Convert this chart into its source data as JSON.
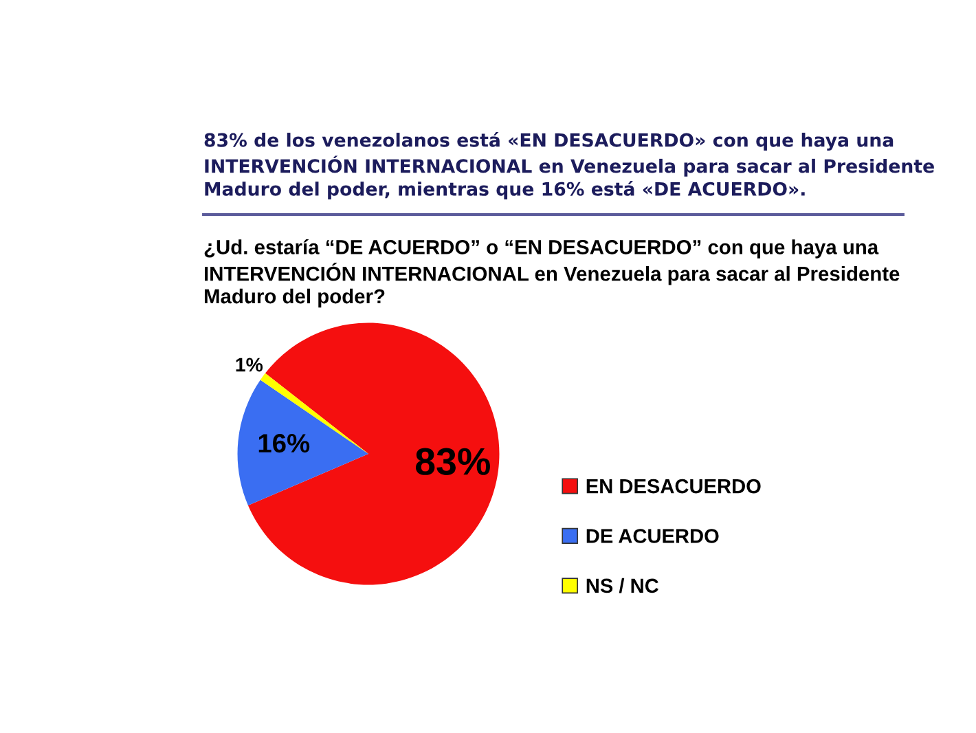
{
  "chart_data": {
    "type": "pie",
    "title": "83% de los venezolanos está «EN DESACUERDO» con que haya una INTERVENCIÓN INTERNACIONAL en Venezuela para sacar al Presidente Maduro del poder, mientras que 16% está «DE ACUERDO».",
    "subtitle": "¿Ud. estaría “DE ACUERDO” o “EN DESACUERDO” con que haya una INTERVENCIÓN INTERNACIONAL en Venezuela para sacar al Presidente Maduro del poder?",
    "categories": [
      "EN DESACUERDO",
      "DE ACUERDO",
      "NS / NC"
    ],
    "values": [
      83,
      16,
      1
    ],
    "colors": [
      "#f50f0f",
      "#3a6ef2",
      "#ffff00"
    ],
    "value_labels": [
      "83%",
      "16%",
      "1%"
    ],
    "legend": "right"
  }
}
